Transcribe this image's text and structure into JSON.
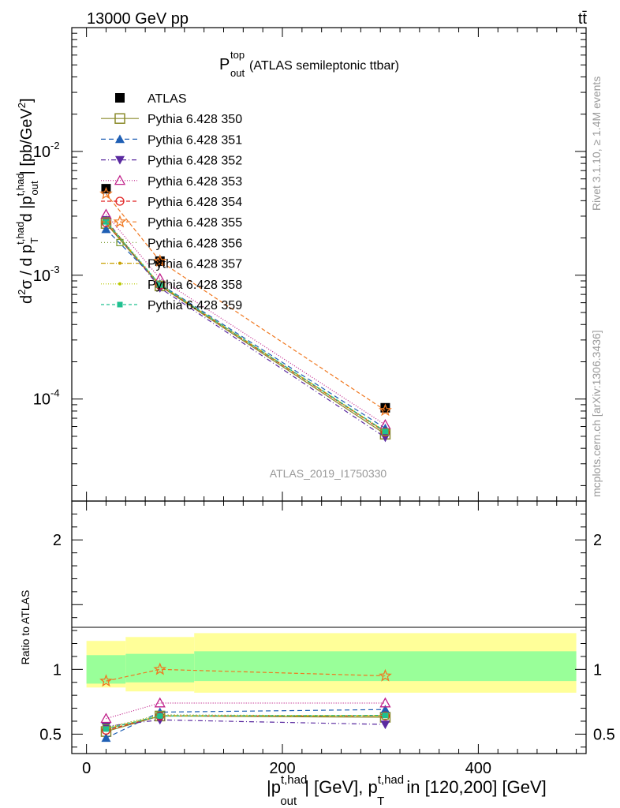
{
  "header": {
    "left": "13000 GeV pp",
    "right": "tt̄"
  },
  "title": {
    "main": "P",
    "sup": "top",
    "sub": "out",
    "rest": " (ATLAS semileptonic ttbar)"
  },
  "watermark": "ATLAS_2019_I1750330",
  "side_labels": {
    "rivet": "Rivet 3.1.10, ≥ 1.4M events",
    "mcplots": "mcplots.cern.ch [arXiv:1306.3436]"
  },
  "top_ylabel": "d²σ / d p_T^{t,had} d |p_out^{t,had}| [pb/GeV²]",
  "ratio_ylabel": "Ratio to ATLAS",
  "xlabel": "|p_out^{t,had}| [GeV], p_T^{t,had} in [120,200] [GeV]",
  "chart_data": [
    {
      "type": "line",
      "panel": "main",
      "yscale": "log",
      "xlim": [
        -15,
        510
      ],
      "ylim": [
        1.5e-05,
        0.1
      ],
      "x": [
        20,
        75,
        305
      ],
      "xedges": [
        0,
        40,
        110,
        500
      ],
      "y_tick_labels": [
        "10^{-4}",
        "10^{-3}",
        "10^{-2}"
      ],
      "legend_position": "top-left",
      "series": [
        {
          "name": "ATLAS",
          "color": "#000000",
          "marker": "square",
          "values": [
            0.005,
            0.0013,
            8.5e-05
          ]
        },
        {
          "name": "Pythia 6.428 350",
          "color": "#8a8a2a",
          "marker": "open-square",
          "dash": "",
          "values": [
            0.00262,
            0.00082,
            5.2e-05
          ]
        },
        {
          "name": "Pythia 6.428 351",
          "color": "#1f5fb4",
          "marker": "triangle-up",
          "dash": "6,4",
          "values": [
            0.00235,
            0.00085,
            5.8e-05
          ]
        },
        {
          "name": "Pythia 6.428 352",
          "color": "#5a2aa0",
          "marker": "triangle-down",
          "dash": "6,3,1,3",
          "values": [
            0.0028,
            0.00079,
            4.9e-05
          ]
        },
        {
          "name": "Pythia 6.428 353",
          "color": "#c0208a",
          "marker": "open-triangle-up",
          "dash": "1,2",
          "values": [
            0.0031,
            0.00094,
            6.2e-05
          ]
        },
        {
          "name": "Pythia 6.428 354",
          "color": "#e02020",
          "marker": "open-circle",
          "dash": "5,3",
          "values": [
            0.00265,
            0.00083,
            5.4e-05
          ]
        },
        {
          "name": "Pythia 6.428 355",
          "color": "#f07820",
          "marker": "open-star",
          "dash": "5,3",
          "values": [
            0.00455,
            0.0013,
            8.1e-05
          ]
        },
        {
          "name": "Pythia 6.428 356",
          "color": "#7a9a30",
          "marker": "open-square-small",
          "dash": "1,3",
          "values": [
            0.00275,
            0.000845,
            5.4e-05
          ]
        },
        {
          "name": "Pythia 6.428 357",
          "color": "#c8a000",
          "marker": "dot",
          "dash": "6,2,1,2",
          "values": [
            0.00268,
            0.000835,
            5.45e-05
          ]
        },
        {
          "name": "Pythia 6.428 358",
          "color": "#b8c800",
          "marker": "dot",
          "dash": "1,2",
          "values": [
            0.00272,
            0.00084,
            5.5e-05
          ]
        },
        {
          "name": "Pythia 6.428 359",
          "color": "#20c090",
          "marker": "filled-square-small",
          "dash": "4,3",
          "values": [
            0.0027,
            0.000835,
            5.48e-05
          ]
        }
      ]
    },
    {
      "type": "line",
      "panel": "ratio",
      "ylabel": "Ratio to ATLAS",
      "xlim": [
        -15,
        510
      ],
      "ylim": [
        0.35,
        2.3
      ],
      "x": [
        20,
        75,
        305
      ],
      "x_tick_labels": [
        "0",
        "200",
        "400"
      ],
      "y_tick_labels": [
        "0.5",
        "1",
        "2"
      ],
      "bands": {
        "edges": [
          0,
          40,
          110,
          500
        ],
        "green_lo": [
          0.89,
          0.9,
          0.91
        ],
        "green_hi": [
          1.11,
          1.12,
          1.14
        ],
        "yellow_lo": [
          0.86,
          0.83,
          0.82
        ],
        "yellow_hi": [
          1.22,
          1.25,
          1.28
        ],
        "green_color": "#99ff99",
        "yellow_color": "#ffff99"
      },
      "series": [
        {
          "name": "Pythia 6.428 350",
          "values": [
            0.52,
            0.64,
            0.63
          ]
        },
        {
          "name": "Pythia 6.428 351",
          "values": [
            0.47,
            0.67,
            0.69
          ]
        },
        {
          "name": "Pythia 6.428 352",
          "values": [
            0.56,
            0.61,
            0.575
          ]
        },
        {
          "name": "Pythia 6.428 353",
          "values": [
            0.62,
            0.74,
            0.74
          ]
        },
        {
          "name": "Pythia 6.428 354",
          "values": [
            0.53,
            0.64,
            0.64
          ]
        },
        {
          "name": "Pythia 6.428 355",
          "values": [
            0.91,
            1.0,
            0.95
          ]
        },
        {
          "name": "Pythia 6.428 356",
          "values": [
            0.55,
            0.65,
            0.64
          ]
        },
        {
          "name": "Pythia 6.428 357",
          "values": [
            0.54,
            0.64,
            0.64
          ]
        },
        {
          "name": "Pythia 6.428 358",
          "values": [
            0.545,
            0.645,
            0.645
          ]
        },
        {
          "name": "Pythia 6.428 359",
          "values": [
            0.54,
            0.64,
            0.645
          ]
        }
      ]
    }
  ]
}
